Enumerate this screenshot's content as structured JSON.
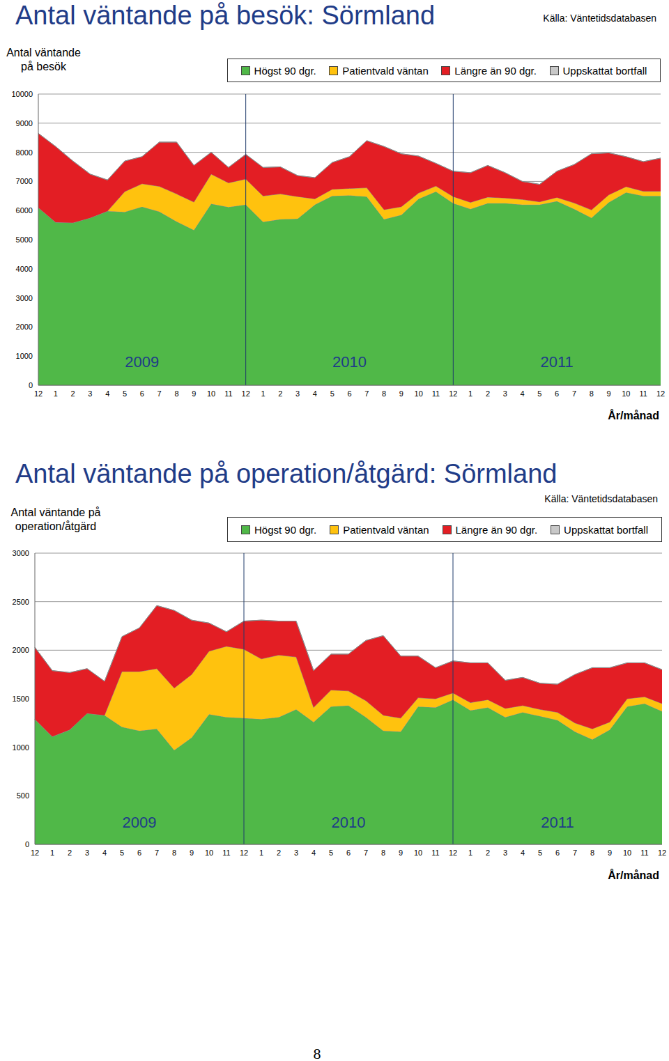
{
  "chart_data": [
    {
      "type": "area",
      "stacked": true,
      "title": "Antal väntande på besök: Sörmland",
      "source": "Källa: Väntetidsdatabasen",
      "y_label": "Antal väntande på besök",
      "x_label": "År/månad",
      "categories": [
        "12",
        "1",
        "2",
        "3",
        "4",
        "5",
        "6",
        "7",
        "8",
        "9",
        "10",
        "11",
        "12",
        "1",
        "2",
        "3",
        "4",
        "5",
        "6",
        "7",
        "8",
        "9",
        "10",
        "11",
        "12",
        "1",
        "2",
        "3",
        "4",
        "5",
        "6",
        "7",
        "8",
        "9",
        "10",
        "11",
        "12"
      ],
      "series": [
        {
          "name": "Högst 90 dgr.",
          "color": "#50b848",
          "values": [
            6100,
            5600,
            5580,
            5750,
            5980,
            5950,
            6130,
            5960,
            5620,
            5330,
            6230,
            6120,
            6200,
            5610,
            5700,
            5720,
            6200,
            6500,
            6520,
            6480,
            5700,
            5850,
            6400,
            6650,
            6250,
            6050,
            6250,
            6250,
            6200,
            6200,
            6320,
            6050,
            5750,
            6280,
            6620,
            6500,
            6500
          ]
        },
        {
          "name": "Patientvald väntan",
          "color": "#ffc20e",
          "values": [
            0,
            0,
            0,
            0,
            0,
            700,
            790,
            870,
            950,
            960,
            1020,
            830,
            880,
            890,
            870,
            760,
            200,
            230,
            240,
            300,
            330,
            280,
            200,
            190,
            230,
            230,
            210,
            180,
            180,
            100,
            130,
            210,
            270,
            260,
            200,
            160,
            160
          ]
        },
        {
          "name": "Längre än 90 dgr.",
          "color": "#e31e24",
          "values": [
            2550,
            2600,
            2120,
            1500,
            1070,
            1050,
            930,
            1520,
            1780,
            1260,
            750,
            530,
            850,
            980,
            930,
            720,
            730,
            920,
            1090,
            1620,
            2170,
            1820,
            1270,
            780,
            870,
            1020,
            1090,
            870,
            620,
            600,
            900,
            1320,
            1930,
            1440,
            1030,
            1020,
            1140
          ]
        },
        {
          "name": "Uppskattat bortfall",
          "color": "#c8c8c8",
          "values": [
            0,
            0,
            0,
            0,
            0,
            0,
            0,
            0,
            0,
            0,
            0,
            0,
            0,
            0,
            0,
            0,
            0,
            0,
            0,
            0,
            0,
            0,
            0,
            0,
            0,
            0,
            0,
            0,
            0,
            0,
            0,
            0,
            0,
            0,
            0,
            0,
            0
          ]
        }
      ],
      "ylim": [
        0,
        10000
      ],
      "yticks": [
        0,
        1000,
        2000,
        3000,
        4000,
        5000,
        6000,
        7000,
        8000,
        9000,
        10000
      ],
      "grid": true,
      "annotations": [
        {
          "text": "2009",
          "x": 6,
          "y": 800
        },
        {
          "text": "2010",
          "x": 18,
          "y": 800
        },
        {
          "text": "2011",
          "x": 30,
          "y": 800
        }
      ]
    },
    {
      "type": "area",
      "stacked": true,
      "title": "Antal väntande på operation/åtgärd: Sörmland",
      "source": "Källa: Väntetidsdatabasen",
      "y_label": "Antal väntande på operation/åtgärd",
      "x_label": "År/månad",
      "categories": [
        "12",
        "1",
        "2",
        "3",
        "4",
        "5",
        "6",
        "7",
        "8",
        "9",
        "10",
        "11",
        "12",
        "1",
        "2",
        "3",
        "4",
        "5",
        "6",
        "7",
        "8",
        "9",
        "10",
        "11",
        "12",
        "1",
        "2",
        "3",
        "4",
        "5",
        "6",
        "7",
        "8",
        "9",
        "10",
        "11",
        "12"
      ],
      "series": [
        {
          "name": "Högst 90 dgr.",
          "color": "#50b848",
          "values": [
            1290,
            1110,
            1180,
            1350,
            1330,
            1210,
            1170,
            1190,
            970,
            1100,
            1340,
            1310,
            1300,
            1290,
            1310,
            1390,
            1260,
            1420,
            1430,
            1310,
            1170,
            1160,
            1420,
            1410,
            1490,
            1380,
            1410,
            1310,
            1360,
            1320,
            1280,
            1160,
            1080,
            1180,
            1420,
            1450,
            1370
          ]
        },
        {
          "name": "Patientvald väntan",
          "color": "#ffc20e",
          "values": [
            0,
            0,
            0,
            0,
            0,
            570,
            610,
            620,
            640,
            650,
            650,
            730,
            710,
            620,
            640,
            540,
            150,
            170,
            150,
            170,
            160,
            140,
            90,
            90,
            70,
            80,
            80,
            90,
            70,
            70,
            80,
            90,
            110,
            80,
            80,
            70,
            80
          ]
        },
        {
          "name": "Längre än 90 dgr.",
          "color": "#e31e24",
          "values": [
            740,
            680,
            590,
            460,
            350,
            360,
            450,
            650,
            800,
            560,
            290,
            150,
            290,
            400,
            350,
            370,
            380,
            370,
            380,
            620,
            820,
            640,
            430,
            320,
            330,
            410,
            380,
            290,
            290,
            270,
            290,
            500,
            630,
            560,
            370,
            350,
            350
          ]
        },
        {
          "name": "Uppskattat bortfall",
          "color": "#c8c8c8",
          "values": [
            0,
            0,
            0,
            0,
            0,
            0,
            0,
            0,
            0,
            0,
            0,
            0,
            0,
            0,
            0,
            0,
            0,
            0,
            0,
            0,
            0,
            0,
            0,
            0,
            0,
            0,
            0,
            0,
            0,
            0,
            0,
            0,
            0,
            0,
            0,
            0,
            0
          ]
        }
      ],
      "ylim": [
        0,
        3000
      ],
      "yticks": [
        0,
        500,
        1000,
        1500,
        2000,
        2500,
        3000
      ],
      "grid": true,
      "annotations": [
        {
          "text": "2009",
          "x": 6,
          "y": 230
        },
        {
          "text": "2010",
          "x": 18,
          "y": 230
        },
        {
          "text": "2011",
          "x": 30,
          "y": 230
        }
      ]
    }
  ],
  "page_number": "8"
}
